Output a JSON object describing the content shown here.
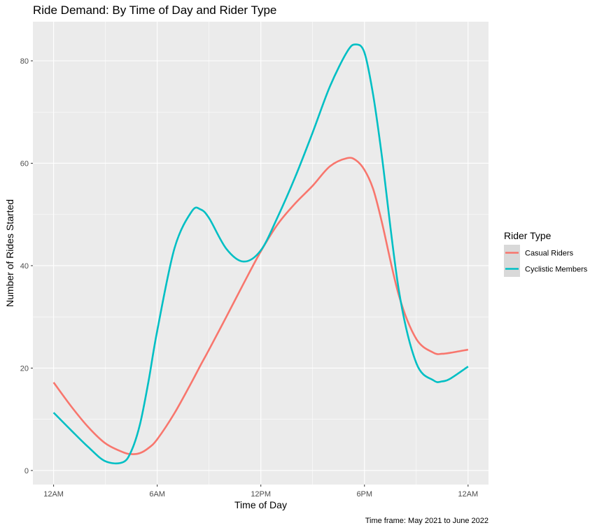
{
  "chart_data": {
    "type": "line",
    "title": "Ride Demand: By Time of Day and Rider Type",
    "xlabel": "Time of Day",
    "ylabel": "Number of Rides Started",
    "caption": "Time frame: May 2021 to June 2022",
    "x_unit": "hour",
    "xlim": [
      0,
      24
    ],
    "ylim": [
      0,
      85
    ],
    "x_ticks": [
      0,
      6,
      12,
      18,
      24
    ],
    "x_tick_labels": [
      "12AM",
      "6AM",
      "12PM",
      "6PM",
      "12AM"
    ],
    "y_ticks": [
      0,
      20,
      40,
      60,
      80
    ],
    "y_tick_labels": [
      "0",
      "20",
      "40",
      "60",
      "80"
    ],
    "grid": true,
    "legend": {
      "title": "Rider Type",
      "position": "right"
    },
    "x": [
      0,
      1,
      2,
      3,
      4,
      4.5,
      5,
      5.5,
      6,
      7,
      8,
      8.5,
      9,
      10,
      11,
      12,
      13,
      14,
      15,
      16,
      17,
      17.5,
      18,
      18.5,
      19,
      20,
      21,
      22,
      22.5,
      23,
      24
    ],
    "series": [
      {
        "name": "Casual Riders",
        "color": "#F8766D",
        "values": [
          17.2,
          12.6,
          8.5,
          5.3,
          3.6,
          3.2,
          3.4,
          4.4,
          6.1,
          11.2,
          17.3,
          20.5,
          23.6,
          30.0,
          36.5,
          42.8,
          48.2,
          52.2,
          55.6,
          59.4,
          61.0,
          60.6,
          58.7,
          55.0,
          48.6,
          34.1,
          25.7,
          23.0,
          22.8,
          23.0,
          23.6
        ]
      },
      {
        "name": "Cyclistic Members",
        "color": "#00BFC4",
        "values": [
          11.3,
          7.9,
          4.6,
          1.8,
          1.6,
          3.8,
          9.0,
          17.5,
          27.3,
          43.4,
          50.6,
          51.0,
          49.3,
          43.3,
          40.8,
          43.0,
          49.7,
          57.4,
          66.0,
          75.0,
          81.8,
          83.2,
          81.6,
          73.4,
          61.6,
          35.0,
          21.0,
          17.6,
          17.4,
          18.0,
          20.3
        ]
      }
    ]
  }
}
